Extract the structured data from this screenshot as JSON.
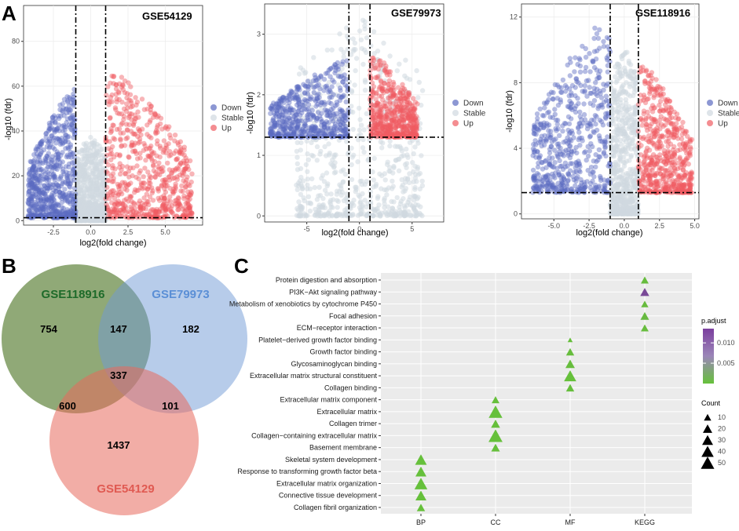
{
  "panels": {
    "a": "A",
    "b": "B",
    "c": "C"
  },
  "chart_data": [
    {
      "type": "scatter",
      "title": "GSE54129",
      "xlabel": "log2(fold change)",
      "ylabel": "-log10 (fdr)",
      "xlim": [
        -4.5,
        7.5
      ],
      "ylim": [
        -2,
        96
      ],
      "xticks": [
        -2.5,
        0,
        2.5,
        5
      ],
      "xtick_labels": [
        "-2.5",
        "0.0",
        "2.5",
        "5.0"
      ],
      "yticks": [
        0,
        20,
        40,
        60,
        80
      ],
      "ytick_labels": [
        "0",
        "20",
        "40",
        "60",
        "80"
      ],
      "vlines": [
        -1,
        1
      ],
      "hline": 1.3,
      "legend": [
        "Down",
        "Stable",
        "Up"
      ],
      "groups": {
        "down": {
          "xmin": -4.2,
          "xmax": -1,
          "ymax": 60
        },
        "stable": {
          "xmin": -1,
          "xmax": 1,
          "ymax": 38
        },
        "up": {
          "xmin": 1,
          "xmax": 6.8,
          "ymax": 69
        }
      }
    },
    {
      "type": "scatter",
      "title": "GSE79973",
      "xlabel": "log2(fold change)",
      "ylabel": "-log10 (fdr)",
      "xlim": [
        -9,
        8
      ],
      "ylim": [
        -0.1,
        3.5
      ],
      "xticks": [
        -5,
        0,
        5
      ],
      "xtick_labels": [
        "-5",
        "0",
        "5"
      ],
      "yticks": [
        0,
        1,
        2,
        3
      ],
      "ytick_labels": [
        "0",
        "1",
        "2",
        "3"
      ],
      "vlines": [
        -1,
        1
      ],
      "hline": 1.3,
      "legend": [
        "Down",
        "Stable",
        "Up"
      ],
      "groups": {
        "down": {
          "xmin": -8.5,
          "xmax": -1,
          "ymax": 2.6
        },
        "stable": {
          "xmin": -6,
          "xmax": 6,
          "ymax": 3.3
        },
        "up": {
          "xmin": 1,
          "xmax": 5.5,
          "ymax": 2.7
        }
      }
    },
    {
      "type": "scatter",
      "title": "GSE118916",
      "xlabel": "log2(fold change)",
      "ylabel": "-log10 (fdr)",
      "xlim": [
        -7.3,
        5.3
      ],
      "ylim": [
        -0.3,
        12.8
      ],
      "xticks": [
        -5,
        -2.5,
        0,
        2.5,
        5
      ],
      "xtick_labels": [
        "-5.0",
        "-2.5",
        "0.0",
        "2.5",
        "5.0"
      ],
      "yticks": [
        0,
        4,
        8,
        12
      ],
      "ytick_labels": [
        "0",
        "4",
        "8",
        "12"
      ],
      "vlines": [
        -1,
        1
      ],
      "hline": 1.3,
      "legend": [
        "Down",
        "Stable",
        "Up"
      ],
      "groups": {
        "down": {
          "xmin": -6.5,
          "xmax": -1,
          "ymax": 12.3
        },
        "stable": {
          "xmin": -1,
          "xmax": 1,
          "ymax": 10.3
        },
        "up": {
          "xmin": 1,
          "xmax": 4.8,
          "ymax": 9.5
        }
      }
    },
    {
      "type": "venn",
      "sets": [
        {
          "name": "GSE118916",
          "color": "#6b8c4a"
        },
        {
          "name": "GSE79973",
          "color": "#6f9ad6"
        },
        {
          "name": "GSE54129",
          "color": "#e8695c"
        }
      ],
      "regions": [
        {
          "sets": [
            "GSE118916"
          ],
          "count": 754
        },
        {
          "sets": [
            "GSE79973"
          ],
          "count": 182
        },
        {
          "sets": [
            "GSE54129"
          ],
          "count": 1437
        },
        {
          "sets": [
            "GSE118916",
            "GSE79973"
          ],
          "count": 147
        },
        {
          "sets": [
            "GSE118916",
            "GSE54129"
          ],
          "count": 600
        },
        {
          "sets": [
            "GSE79973",
            "GSE54129"
          ],
          "count": 101
        },
        {
          "sets": [
            "GSE118916",
            "GSE79973",
            "GSE54129"
          ],
          "count": 337
        }
      ]
    },
    {
      "type": "dot",
      "x_categories": [
        "BP",
        "CC",
        "MF",
        "KEGG"
      ],
      "y_terms": [
        "Protein digestion and absorption",
        "PI3K−Akt signaling pathway",
        "Metabolism of xenobiotics by cytochrome P450",
        "Focal adhesion",
        "ECM−receptor interaction",
        "Platelet−derived growth factor binding",
        "Growth factor binding",
        "Glycosaminoglycan binding",
        "Extracellular matrix structural constituent",
        "Collagen binding",
        "Extracellular matrix component",
        "Extracellular matrix",
        "Collagen trimer",
        "Collagen−containing extracellular matrix",
        "Basement membrane",
        "Skeletal system development",
        "Response to transforming growth factor beta",
        "Extracellular matrix organization",
        "Connective tissue development",
        "Collagen fibril organization"
      ],
      "points": [
        {
          "term": "Protein digestion and absorption",
          "cat": "KEGG",
          "count": 12,
          "padj": 0.0005
        },
        {
          "term": "PI3K−Akt signaling pathway",
          "cat": "KEGG",
          "count": 18,
          "padj": 0.0125
        },
        {
          "term": "Metabolism of xenobiotics by cytochrome P450",
          "cat": "KEGG",
          "count": 10,
          "padj": 0.0006
        },
        {
          "term": "Focal adhesion",
          "cat": "KEGG",
          "count": 16,
          "padj": 0.0008
        },
        {
          "term": "ECM−receptor interaction",
          "cat": "KEGG",
          "count": 12,
          "padj": 0.0004
        },
        {
          "term": "Platelet−derived growth factor binding",
          "cat": "MF",
          "count": 3,
          "padj": 0.0003
        },
        {
          "term": "Growth factor binding",
          "cat": "MF",
          "count": 14,
          "padj": 0.0004
        },
        {
          "term": "Glycosaminoglycan binding",
          "cat": "MF",
          "count": 20,
          "padj": 0.0004
        },
        {
          "term": "Extracellular matrix structural constituent",
          "cat": "MF",
          "count": 40,
          "padj": 0.0001
        },
        {
          "term": "Collagen binding",
          "cat": "MF",
          "count": 14,
          "padj": 0.0003
        },
        {
          "term": "Extracellular matrix component",
          "cat": "CC",
          "count": 12,
          "padj": 0.0002
        },
        {
          "term": "Extracellular matrix",
          "cat": "CC",
          "count": 52,
          "padj": 0.0001
        },
        {
          "term": "Collagen trimer",
          "cat": "CC",
          "count": 18,
          "padj": 0.0002
        },
        {
          "term": "Collagen−containing extracellular matrix",
          "cat": "CC",
          "count": 55,
          "padj": 0.0001
        },
        {
          "term": "Basement membrane",
          "cat": "CC",
          "count": 16,
          "padj": 0.0002
        },
        {
          "term": "Skeletal system development",
          "cat": "BP",
          "count": 35,
          "padj": 0.0001
        },
        {
          "term": "Response to transforming growth factor beta",
          "cat": "BP",
          "count": 30,
          "padj": 0.0001
        },
        {
          "term": "Extracellular matrix organization",
          "cat": "BP",
          "count": 45,
          "padj": 0.0001
        },
        {
          "term": "Connective tissue development",
          "cat": "BP",
          "count": 30,
          "padj": 0.0001
        },
        {
          "term": "Collagen fibril organization",
          "cat": "BP",
          "count": 14,
          "padj": 0.0001
        }
      ],
      "color_legend": {
        "title": "p.adjust",
        "range": [
          0,
          0.0135
        ],
        "ticks": [
          0.005,
          0.01
        ],
        "tick_labels": [
          "0.005",
          "0.010"
        ],
        "low_color": "#66c13a",
        "high_color": "#7b3f9e"
      },
      "size_legend": {
        "title": "Count",
        "values": [
          10,
          20,
          30,
          40,
          50
        ],
        "labels": [
          "10",
          "20",
          "30",
          "40",
          "50"
        ]
      }
    }
  ],
  "colors": {
    "down": "#5b6bc0",
    "stable": "#d0d8e0",
    "up": "#ef5c62",
    "panel_bg": "#ebebeb",
    "grid": "#ffffff",
    "point_green": "#66c13a"
  }
}
